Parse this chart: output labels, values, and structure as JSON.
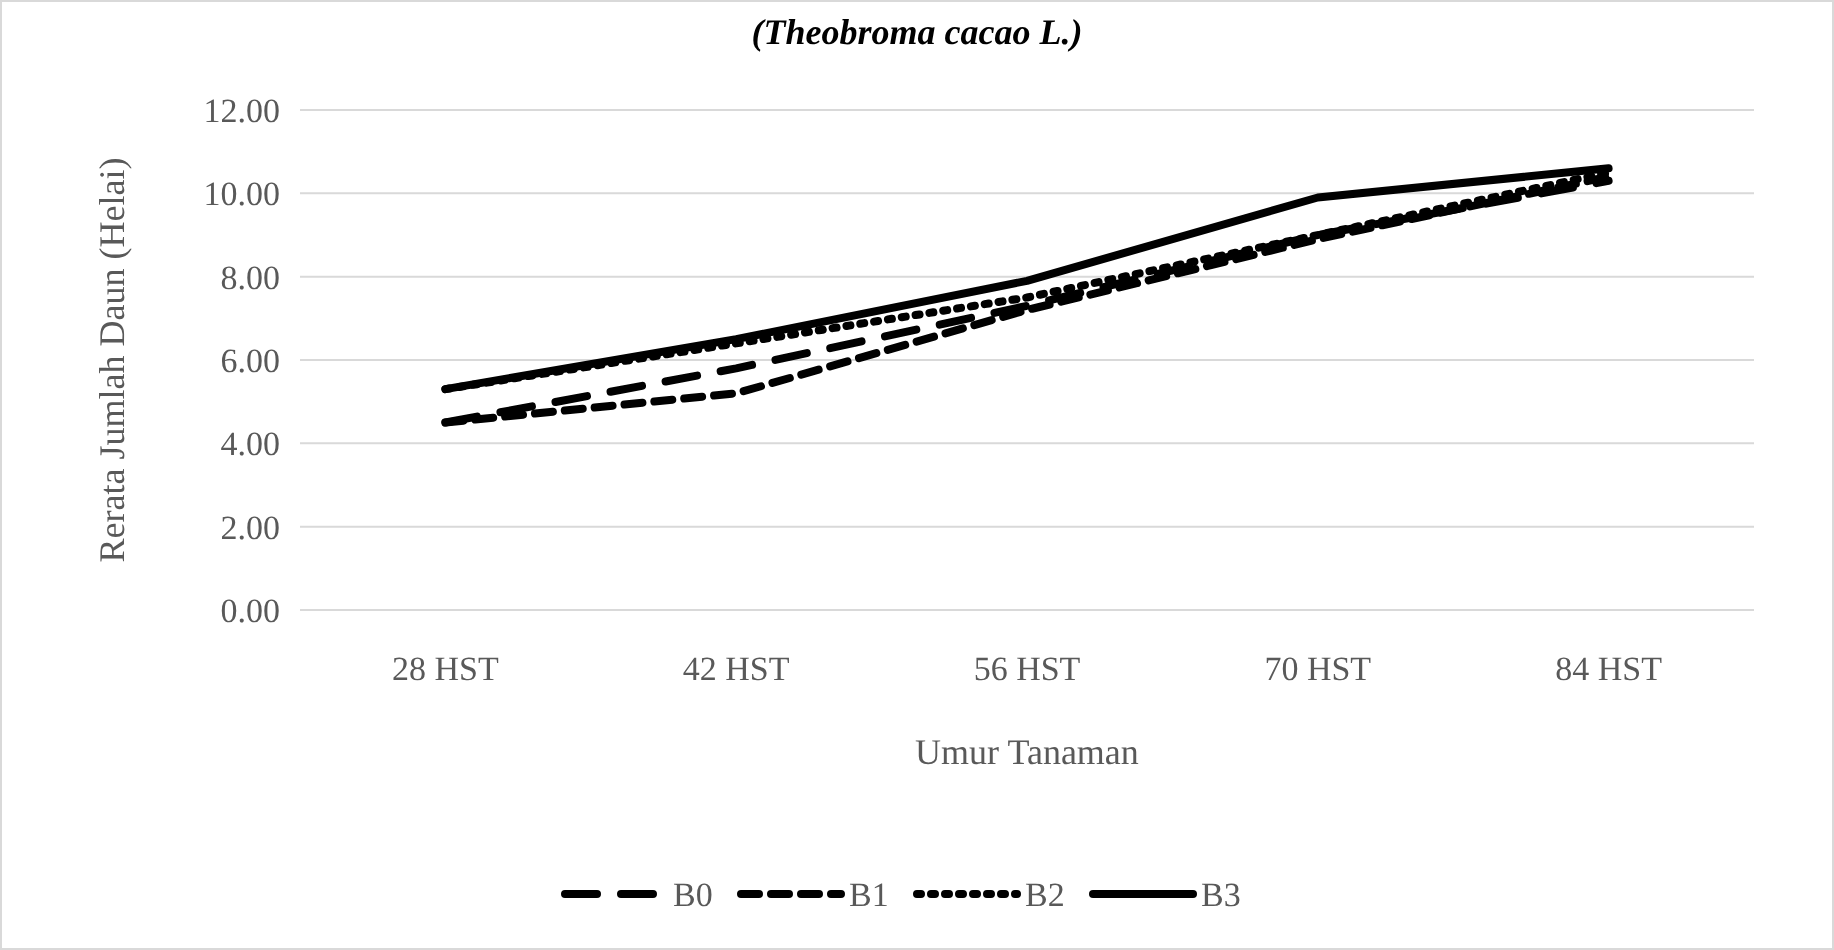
{
  "chart_data": {
    "type": "line",
    "title": "(Theobroma cacao L.)",
    "xlabel": "Umur Tanaman",
    "ylabel": "Rerata Jumlah Daun (Helai)",
    "categories": [
      "28 HST",
      "42 HST",
      "56 HST",
      "70 HST",
      "84 HST"
    ],
    "series": [
      {
        "name": "B0",
        "color": "#000000",
        "line_style": "longdash",
        "values": [
          4.5,
          5.8,
          7.3,
          9.0,
          10.3
        ]
      },
      {
        "name": "B1",
        "color": "#000000",
        "line_style": "dashed",
        "values": [
          4.5,
          5.2,
          7.2,
          8.9,
          10.4
        ]
      },
      {
        "name": "B2",
        "color": "#000000",
        "line_style": "dotted",
        "values": [
          5.3,
          6.4,
          7.5,
          9.0,
          10.5
        ]
      },
      {
        "name": "B3",
        "color": "#000000",
        "line_style": "solid",
        "values": [
          5.3,
          6.5,
          7.9,
          9.9,
          10.6
        ]
      }
    ],
    "ylim": [
      0,
      12
    ],
    "yticks": [
      {
        "value": 0,
        "label": "0.00"
      },
      {
        "value": 2,
        "label": "2.00"
      },
      {
        "value": 4,
        "label": "4.00"
      },
      {
        "value": 6,
        "label": "6.00"
      },
      {
        "value": 8,
        "label": "8.00"
      },
      {
        "value": 10,
        "label": "10.00"
      },
      {
        "value": 12,
        "label": "12.00"
      }
    ],
    "grid": "y",
    "legend": "bottom",
    "marker": "none"
  }
}
